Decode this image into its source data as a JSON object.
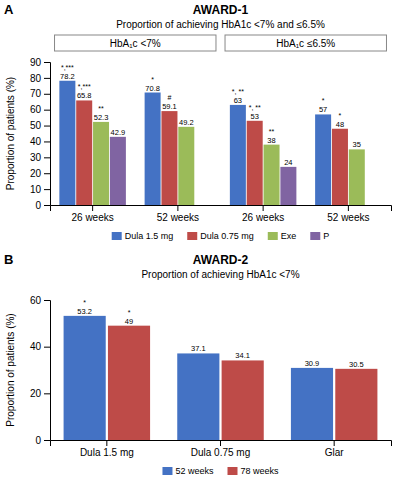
{
  "chart_data": [
    {
      "type": "bar",
      "panel_label": "A",
      "title": "AWARD-1",
      "subtitle": "Proportion of achieving HbA1c <7% and ≤6.5%",
      "annotations": [
        "HbA₁c <7%",
        "HbA₁c ≤6.5%"
      ],
      "categories": [
        "26 weeks",
        "52 weeks",
        "26 weeks",
        "52 weeks"
      ],
      "series": [
        {
          "name": "Dula 1.5 mg",
          "color": "#4472C4",
          "values": [
            78.2,
            70.8,
            63,
            57
          ],
          "annotations": [
            "*,***",
            "*",
            "*, **",
            "*"
          ]
        },
        {
          "name": "Dula 0.75 mg",
          "color": "#BE4B48",
          "values": [
            65.8,
            59.1,
            53,
            48
          ],
          "annotations": [
            "*,***",
            "#",
            "*, **",
            "*"
          ]
        },
        {
          "name": "Exe",
          "color": "#9BBB59",
          "values": [
            52.3,
            49.2,
            38,
            35
          ],
          "annotations": [
            "**",
            null,
            "**",
            null
          ]
        },
        {
          "name": "P",
          "color": "#8064A2",
          "values": [
            42.9,
            null,
            24,
            null
          ]
        }
      ],
      "ylim": [
        0,
        90
      ],
      "yticks": [
        0,
        10,
        20,
        30,
        40,
        50,
        60,
        70,
        80,
        90
      ],
      "ylabel": "Proportion of patients (%)",
      "data_labels": true,
      "grid": false,
      "legend": "bottom"
    },
    {
      "type": "bar",
      "panel_label": "B",
      "title": "AWARD-2",
      "subtitle": "Proportion of achieving HbA1c <7%",
      "categories": [
        "Dula 1.5 mg",
        "Dula 0.75 mg",
        "Glar"
      ],
      "series": [
        {
          "name": "52 weeks",
          "color": "#4472C4",
          "values": [
            53.2,
            37.1,
            30.9
          ],
          "annotations": [
            "*",
            null,
            null
          ]
        },
        {
          "name": "78 weeks",
          "color": "#BE4B48",
          "values": [
            49,
            34.1,
            30.5
          ],
          "annotations": [
            "*",
            null,
            null
          ]
        }
      ],
      "ylim": [
        0,
        60
      ],
      "yticks": [
        0,
        20,
        40,
        60
      ],
      "ylabel": "Proportion of patients (%)",
      "data_labels": true,
      "grid": false,
      "legend": "bottom"
    }
  ]
}
